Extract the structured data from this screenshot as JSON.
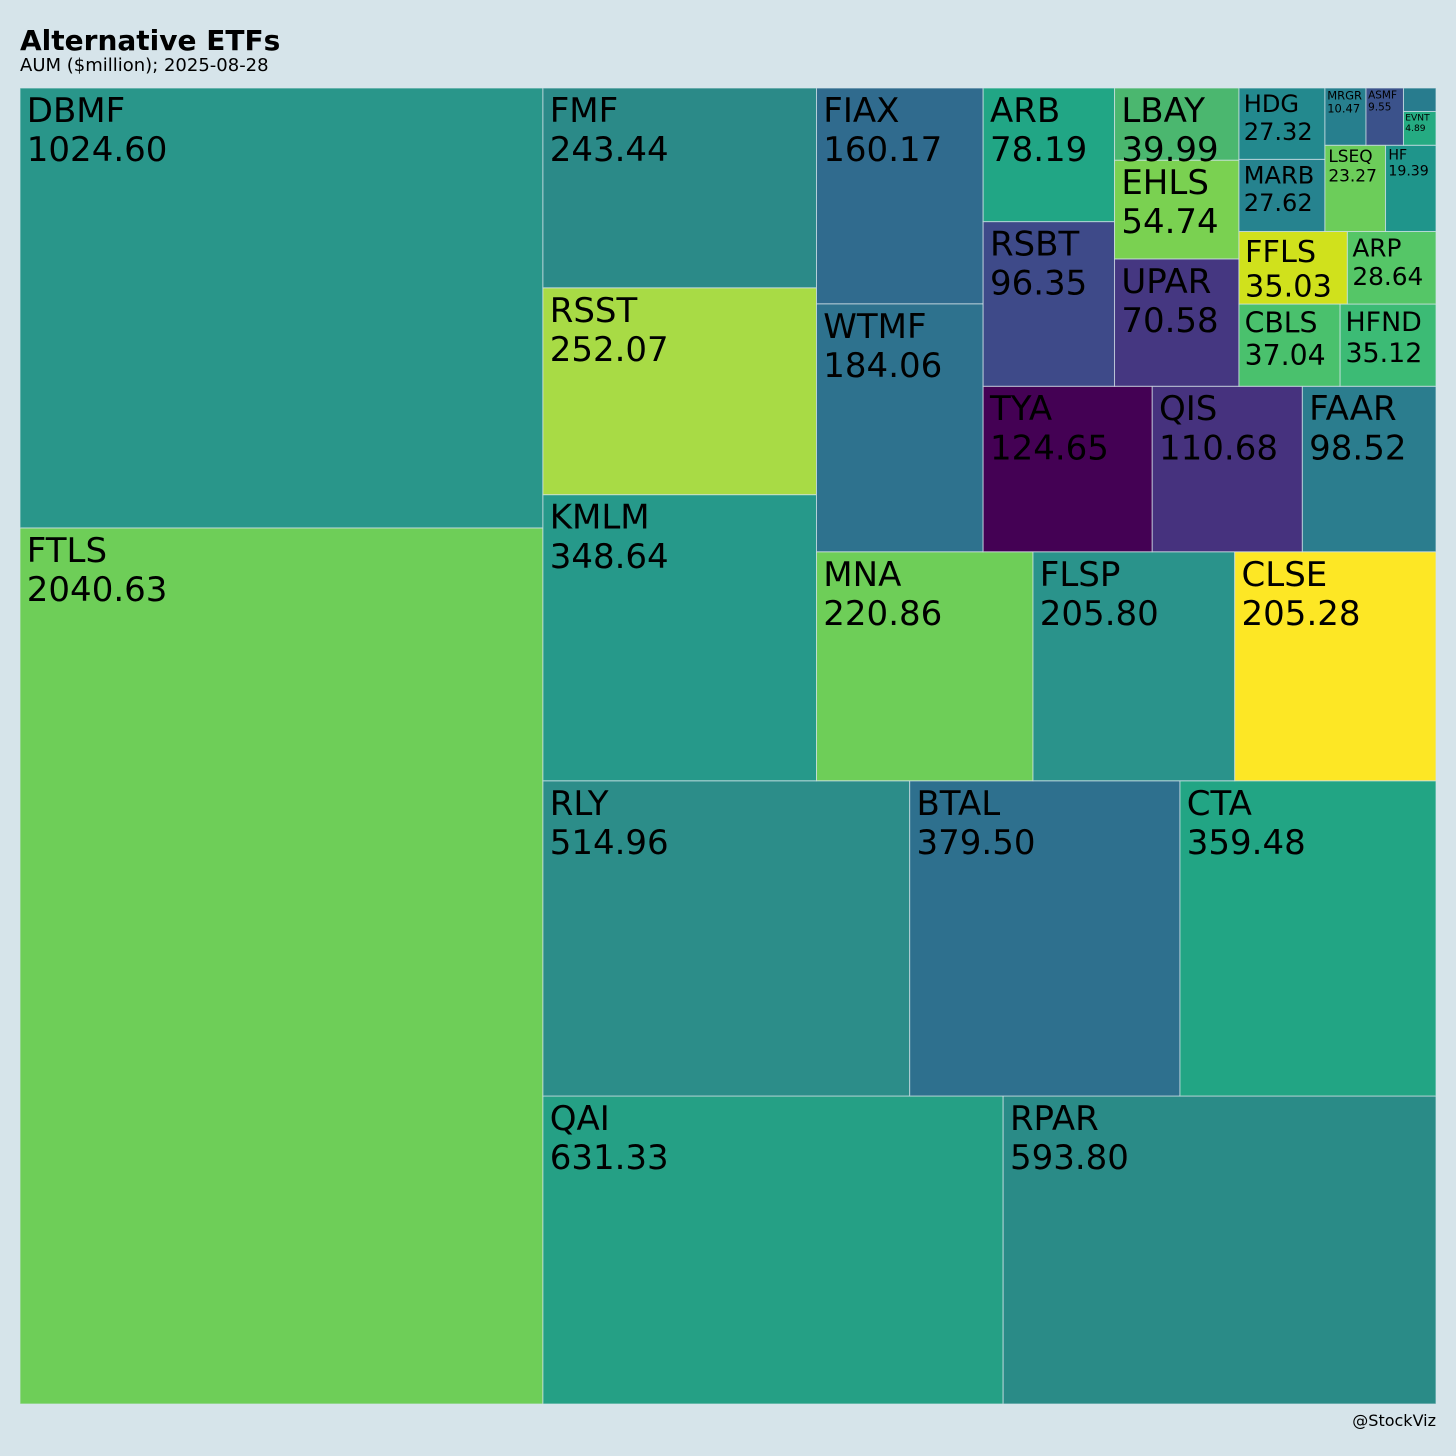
{
  "chart_data": {
    "type": "treemap",
    "title": "Alternative ETFs",
    "subtitle": "AUM ($million); 2025-08-28",
    "source": "@StockViz",
    "categories": [
      "FTLS",
      "DBMF",
      "QAI",
      "RPAR",
      "RLY",
      "BTAL",
      "CTA",
      "KMLM",
      "RSST",
      "FMF",
      "MNA",
      "FLSP",
      "CLSE",
      "WTMF",
      "FIAX",
      "TYA",
      "QIS",
      "FAAR",
      "RSBT",
      "ARB",
      "UPAR",
      "EHLS",
      "LBAY",
      "CBLS",
      "HFND",
      "FFLS",
      "ARP",
      "MARB",
      "HDG",
      "LSEQ",
      "HF",
      "MRGR",
      "ASMF",
      "EVNT",
      null
    ],
    "values": [
      2040.63,
      1024.6,
      631.33,
      593.8,
      514.96,
      379.5,
      359.48,
      348.64,
      252.07,
      243.44,
      220.86,
      205.8,
      205.28,
      184.06,
      160.17,
      124.65,
      110.68,
      98.52,
      96.35,
      78.19,
      70.58,
      54.74,
      39.99,
      37.04,
      35.12,
      35.03,
      28.64,
      27.62,
      27.32,
      23.27,
      19.39,
      10.47,
      9.55,
      4.89,
      3.4
    ],
    "value_labels": [
      "2040.63",
      "1024.60",
      "631.33",
      "593.80",
      "514.96",
      "379.50",
      "359.48",
      "348.64",
      "252.07",
      "243.44",
      "220.86",
      "205.80",
      "205.28",
      "184.06",
      "160.17",
      "124.65",
      "110.68",
      "98.52",
      "96.35",
      "78.19",
      "70.58",
      "54.74",
      "39.99",
      "37.04",
      "35.12",
      "35.03",
      "28.64",
      "27.62",
      "27.32",
      "23.27",
      "19.39",
      "10.47",
      "9.55",
      "4.89",
      null
    ],
    "colors": [
      "#6ece58",
      "#29968a",
      "#25a085",
      "#2a8b87",
      "#2c8d89",
      "#2e708e",
      "#22a584",
      "#26998a",
      "#a8db45",
      "#2b8a88",
      "#6ece58",
      "#2a938b",
      "#fde725",
      "#2e728e",
      "#306b8e",
      "#440154",
      "#46327e",
      "#2b7d8e",
      "#3e4a89",
      "#21a685",
      "#453781",
      "#7ad151",
      "#4bb76f",
      "#4ac16d",
      "#3cbb75",
      "#d0e11c",
      "#55c667",
      "#26838f",
      "#23898e",
      "#6ccd5a",
      "#1f958b",
      "#277f8e",
      "#3b528b",
      "#25ab82",
      "#287c8e"
    ]
  }
}
